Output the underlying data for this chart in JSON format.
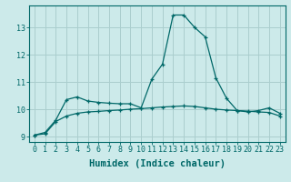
{
  "xlabel": "Humidex (Indice chaleur)",
  "background_color": "#cceaea",
  "grid_color": "#aacece",
  "line_color": "#006868",
  "x_values": [
    0,
    1,
    2,
    3,
    4,
    5,
    6,
    7,
    8,
    9,
    10,
    11,
    12,
    13,
    14,
    15,
    16,
    17,
    18,
    19,
    20,
    21,
    22,
    23
  ],
  "y1_values": [
    9.05,
    9.15,
    9.6,
    10.35,
    10.45,
    10.3,
    10.25,
    10.22,
    10.2,
    10.2,
    10.05,
    11.1,
    11.65,
    13.45,
    13.45,
    13.0,
    12.65,
    11.15,
    10.4,
    9.95,
    9.9,
    9.95,
    10.05,
    9.85
  ],
  "y2_values": [
    9.05,
    9.1,
    9.55,
    9.75,
    9.85,
    9.9,
    9.92,
    9.95,
    9.97,
    10.0,
    10.02,
    10.05,
    10.08,
    10.1,
    10.12,
    10.1,
    10.05,
    10.0,
    9.97,
    9.95,
    9.93,
    9.9,
    9.88,
    9.75
  ],
  "ylim": [
    8.8,
    13.8
  ],
  "xlim": [
    -0.5,
    23.5
  ],
  "yticks": [
    9,
    10,
    11,
    12,
    13
  ],
  "xticks": [
    0,
    1,
    2,
    3,
    4,
    5,
    6,
    7,
    8,
    9,
    10,
    11,
    12,
    13,
    14,
    15,
    16,
    17,
    18,
    19,
    20,
    21,
    22,
    23
  ],
  "tick_fontsize": 6,
  "label_fontsize": 7.5
}
